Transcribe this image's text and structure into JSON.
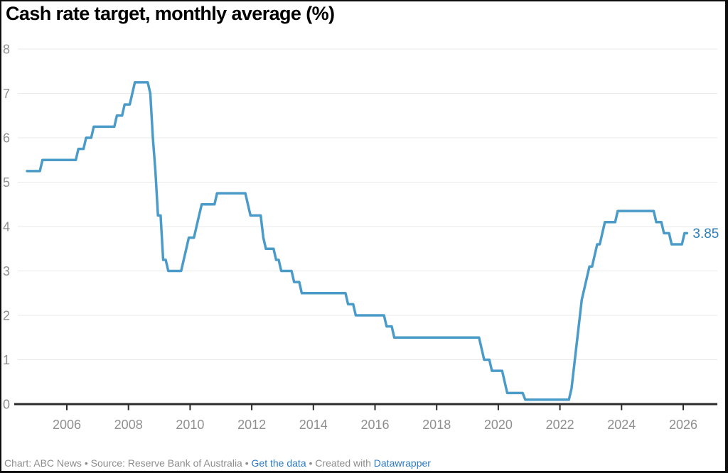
{
  "header": {
    "title": "Cash rate target, monthly average (%)"
  },
  "chart_data": {
    "type": "line",
    "title": "Cash rate target, monthly average (%)",
    "series_name": "Cash rate target",
    "unit": "%",
    "x_range": [
      "2004-09",
      "2026-02"
    ],
    "y_axis": {
      "min": 0,
      "max": 8,
      "ticks": [
        0,
        1,
        2,
        3,
        4,
        5,
        6,
        7,
        8
      ]
    },
    "x_axis": {
      "ticks": [
        2006,
        2008,
        2010,
        2012,
        2014,
        2016,
        2018,
        2020,
        2022,
        2024,
        2026
      ]
    },
    "grid": true,
    "legend": "none",
    "end_label": "3.85",
    "line_color": "#4b9bc9",
    "end_label_color": "#2d7db5",
    "steps_note": "each entry is [month, rate]; rate holds until next entry; final value runs to end of x_range",
    "steps": [
      [
        "2004-09",
        5.25
      ],
      [
        "2005-03",
        5.5
      ],
      [
        "2006-05",
        5.75
      ],
      [
        "2006-08",
        6.0
      ],
      [
        "2006-11",
        6.25
      ],
      [
        "2007-08",
        6.5
      ],
      [
        "2007-11",
        6.75
      ],
      [
        "2008-02",
        7.0
      ],
      [
        "2008-03",
        7.25
      ],
      [
        "2008-09",
        7.0
      ],
      [
        "2008-10",
        6.0
      ],
      [
        "2008-11",
        5.25
      ],
      [
        "2008-12",
        4.25
      ],
      [
        "2009-02",
        3.25
      ],
      [
        "2009-04",
        3.0
      ],
      [
        "2009-10",
        3.25
      ],
      [
        "2009-11",
        3.5
      ],
      [
        "2009-12",
        3.75
      ],
      [
        "2010-03",
        4.0
      ],
      [
        "2010-04",
        4.25
      ],
      [
        "2010-05",
        4.5
      ],
      [
        "2010-11",
        4.75
      ],
      [
        "2011-11",
        4.5
      ],
      [
        "2011-12",
        4.25
      ],
      [
        "2012-05",
        3.75
      ],
      [
        "2012-06",
        3.5
      ],
      [
        "2012-10",
        3.25
      ],
      [
        "2012-12",
        3.0
      ],
      [
        "2013-05",
        2.75
      ],
      [
        "2013-08",
        2.5
      ],
      [
        "2015-02",
        2.25
      ],
      [
        "2015-05",
        2.0
      ],
      [
        "2016-05",
        1.75
      ],
      [
        "2016-08",
        1.5
      ],
      [
        "2019-06",
        1.25
      ],
      [
        "2019-07",
        1.0
      ],
      [
        "2019-10",
        0.75
      ],
      [
        "2020-03",
        0.5
      ],
      [
        "2020-04",
        0.25
      ],
      [
        "2020-11",
        0.1
      ],
      [
        "2022-05",
        0.35
      ],
      [
        "2022-06",
        0.85
      ],
      [
        "2022-07",
        1.35
      ],
      [
        "2022-08",
        1.85
      ],
      [
        "2022-09",
        2.35
      ],
      [
        "2022-10",
        2.6
      ],
      [
        "2022-11",
        2.85
      ],
      [
        "2022-12",
        3.1
      ],
      [
        "2023-02",
        3.35
      ],
      [
        "2023-03",
        3.6
      ],
      [
        "2023-05",
        3.85
      ],
      [
        "2023-06",
        4.1
      ],
      [
        "2023-11",
        4.35
      ],
      [
        "2025-02",
        4.1
      ],
      [
        "2025-05",
        3.85
      ],
      [
        "2025-08",
        3.6
      ],
      [
        "2026-01",
        3.85
      ]
    ]
  },
  "theme": {
    "axis_text_color": "#8f8f8f",
    "gridline_color": "#e9e9e9",
    "baseline_color": "#2b2b2b",
    "link_color": "#2b7ac6",
    "footer_text_color": "#8c8c8c"
  },
  "footer": {
    "credit": "Chart: ABC News",
    "separator": " • ",
    "source": "Source: Reserve Bank of Australia",
    "get_data_link": "Get the data",
    "created_with": "Created with ",
    "tool_link": "Datawrapper"
  }
}
